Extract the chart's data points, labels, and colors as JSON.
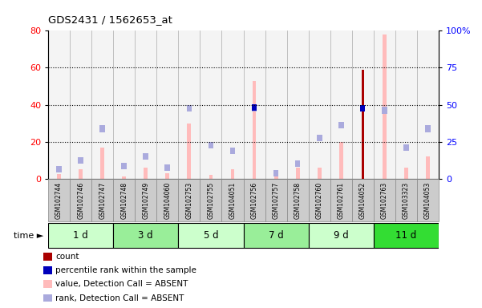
{
  "title": "GDS2431 / 1562653_at",
  "samples": [
    "GSM102744",
    "GSM102746",
    "GSM102747",
    "GSM102748",
    "GSM102749",
    "GSM104060",
    "GSM102753",
    "GSM102755",
    "GSM104051",
    "GSM102756",
    "GSM102757",
    "GSM102758",
    "GSM102760",
    "GSM102761",
    "GSM104052",
    "GSM102763",
    "GSM103323",
    "GSM104053"
  ],
  "time_groups": [
    {
      "label": "1 d",
      "start": 0,
      "end": 3,
      "color": "#ccffcc"
    },
    {
      "label": "3 d",
      "start": 3,
      "end": 6,
      "color": "#99ee99"
    },
    {
      "label": "5 d",
      "start": 6,
      "end": 9,
      "color": "#ccffcc"
    },
    {
      "label": "7 d",
      "start": 9,
      "end": 12,
      "color": "#99ee99"
    },
    {
      "label": "9 d",
      "start": 12,
      "end": 15,
      "color": "#ccffcc"
    },
    {
      "label": "11 d",
      "start": 15,
      "end": 18,
      "color": "#33dd33"
    }
  ],
  "value_absent": [
    2.5,
    5.0,
    17.0,
    1.0,
    6.0,
    3.0,
    30.0,
    2.0,
    5.0,
    53.0,
    1.0,
    6.0,
    6.0,
    20.0,
    0.0,
    78.0,
    6.0,
    12.0
  ],
  "rank_absent": [
    5.0,
    10.0,
    27.0,
    7.0,
    12.0,
    6.0,
    38.0,
    18.0,
    15.0,
    38.0,
    3.0,
    8.0,
    22.0,
    29.0,
    0.0,
    37.0,
    17.0,
    27.0
  ],
  "count": [
    0.0,
    0.0,
    0.0,
    0.0,
    0.0,
    0.0,
    0.0,
    0.0,
    0.0,
    0.0,
    0.0,
    0.0,
    0.0,
    0.0,
    59.0,
    0.0,
    0.0,
    0.0
  ],
  "percentile": [
    0.0,
    0.0,
    0.0,
    0.0,
    0.0,
    0.0,
    0.0,
    0.0,
    0.0,
    38.5,
    0.0,
    0.0,
    0.0,
    0.0,
    38.0,
    0.0,
    0.0,
    0.0
  ],
  "ylim_left": [
    0,
    80
  ],
  "ylim_right": [
    0,
    100
  ],
  "yticks_left": [
    0,
    20,
    40,
    60,
    80
  ],
  "yticks_right": [
    0,
    25,
    50,
    75,
    100
  ],
  "color_value_absent": "#ffbbbb",
  "color_rank_absent": "#aaaadd",
  "color_count": "#aa0000",
  "color_percentile": "#0000bb",
  "color_bg_white": "#ffffff",
  "color_bg_gray": "#dddddd",
  "color_cell_border": "#aaaaaa",
  "legend_items": [
    {
      "color": "#aa0000",
      "label": "count"
    },
    {
      "color": "#0000bb",
      "label": "percentile rank within the sample"
    },
    {
      "color": "#ffbbbb",
      "label": "value, Detection Call = ABSENT"
    },
    {
      "color": "#aaaadd",
      "label": "rank, Detection Call = ABSENT"
    }
  ]
}
